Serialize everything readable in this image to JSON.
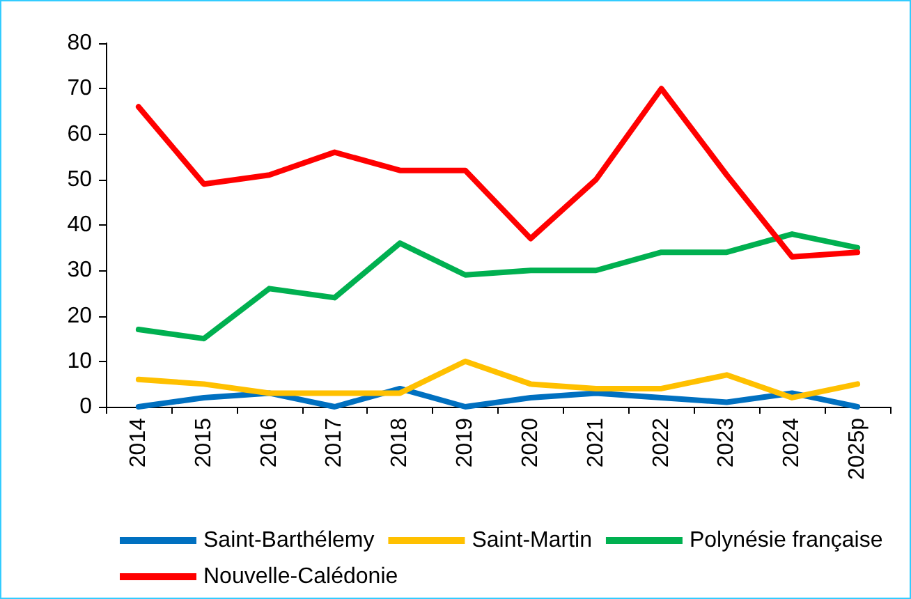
{
  "chart_data": {
    "type": "line",
    "categories": [
      "2014",
      "2015",
      "2016",
      "2017",
      "2018",
      "2019",
      "2020",
      "2021",
      "2022",
      "2023",
      "2024",
      "2025p"
    ],
    "series": [
      {
        "name": "Saint-Barthélemy",
        "color": "#0070c0",
        "values": [
          0,
          2,
          3,
          0,
          4,
          0,
          2,
          3,
          2,
          1,
          3,
          0
        ]
      },
      {
        "name": "Saint-Martin",
        "color": "#ffc000",
        "values": [
          6,
          5,
          3,
          3,
          3,
          10,
          5,
          4,
          4,
          7,
          2,
          5
        ]
      },
      {
        "name": "Polynésie française",
        "color": "#00b050",
        "values": [
          17,
          15,
          26,
          24,
          36,
          29,
          30,
          30,
          34,
          34,
          38,
          35
        ]
      },
      {
        "name": "Nouvelle-Calédonie",
        "color": "#ff0000",
        "values": [
          66,
          49,
          51,
          56,
          52,
          52,
          37,
          50,
          70,
          51,
          33,
          34
        ]
      }
    ],
    "ylim": [
      0,
      80
    ],
    "yticks": [
      0,
      10,
      20,
      30,
      40,
      50,
      60,
      70,
      80
    ],
    "grid": false,
    "legend": "bottom",
    "marker": "none",
    "line_style": "solid"
  }
}
